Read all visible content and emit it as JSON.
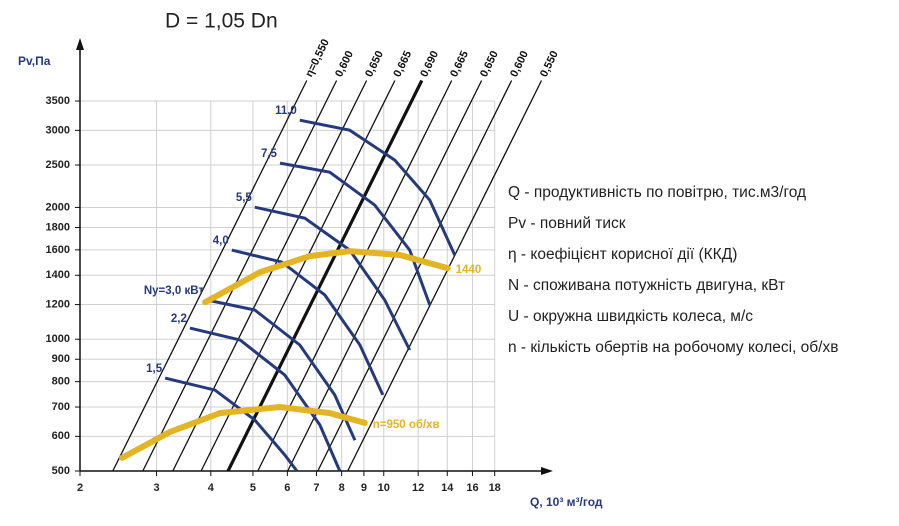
{
  "chart_data": {
    "type": "line",
    "title": "D = 1,05 Dn",
    "xlabel": "Q, 10³ м³/год",
    "ylabel": "Pv,Па",
    "xscale": "log",
    "yscale": "log",
    "xlim": [
      2,
      24
    ],
    "ylim": [
      500,
      4700
    ],
    "xticks": [
      2,
      3,
      4,
      5,
      6,
      7,
      8,
      9,
      10,
      12,
      14,
      16,
      18
    ],
    "yticks": [
      500,
      600,
      700,
      800,
      900,
      1000,
      1200,
      1400,
      1600,
      1800,
      2000,
      2500,
      3000,
      3500
    ],
    "grid": true,
    "efficiency_lines": [
      {
        "name": "η=0,550",
        "color": "#111111",
        "linewidth": 1.3,
        "x": [
          2.38,
          6.65
        ],
        "values": [
          500,
          3900
        ]
      },
      {
        "name": "0,600",
        "color": "#111111",
        "linewidth": 1.3,
        "x": [
          2.79,
          7.79
        ],
        "values": [
          500,
          3900
        ]
      },
      {
        "name": "0,650",
        "color": "#111111",
        "linewidth": 1.3,
        "x": [
          3.27,
          9.13
        ],
        "values": [
          500,
          3900
        ]
      },
      {
        "name": "0,665",
        "color": "#111111",
        "linewidth": 1.3,
        "x": [
          3.8,
          10.61
        ],
        "values": [
          500,
          3900
        ]
      },
      {
        "name": "0,690",
        "color": "#111111",
        "linewidth": 3.2,
        "x": [
          4.38,
          12.23
        ],
        "values": [
          500,
          3900
        ]
      },
      {
        "name": "0,665",
        "color": "#111111",
        "linewidth": 1.3,
        "x": [
          5.13,
          14.33
        ],
        "values": [
          500,
          3900
        ]
      },
      {
        "name": "0,650",
        "color": "#111111",
        "linewidth": 1.3,
        "x": [
          6.01,
          16.79
        ],
        "values": [
          500,
          3900
        ]
      },
      {
        "name": "0,600",
        "color": "#111111",
        "linewidth": 1.3,
        "x": [
          7.05,
          19.69
        ],
        "values": [
          500,
          3900
        ]
      },
      {
        "name": "0,550",
        "color": "#111111",
        "linewidth": 1.3,
        "x": [
          8.26,
          23.07
        ],
        "values": [
          500,
          3900
        ]
      }
    ],
    "power_curves": [
      {
        "name": "11,0",
        "color": "#253a7c",
        "x": [
          6.41,
          8.35,
          10.6,
          12.76,
          14.56
        ],
        "values": [
          3165,
          3002,
          2565,
          2078,
          1557
        ]
      },
      {
        "name": "7,5",
        "color": "#253a7c",
        "x": [
          5.77,
          7.51,
          9.53,
          11.47,
          12.76
        ],
        "values": [
          2525,
          2407,
          2025,
          1598,
          1197
        ]
      },
      {
        "name": "5,5",
        "color": "#253a7c",
        "x": [
          5.05,
          6.58,
          8.35,
          10.05,
          11.47
        ],
        "values": [
          2003,
          1891,
          1598,
          1229,
          945
        ]
      },
      {
        "name": "4,0",
        "color": "#253a7c",
        "x": [
          4.47,
          5.83,
          7.32,
          8.81,
          9.95
        ],
        "values": [
          1598,
          1500,
          1261,
          970,
          746
        ]
      },
      {
        "name": "Ny=3,0 кВт",
        "color": "#253a7c",
        "x": [
          3.92,
          5.05,
          6.41,
          7.71,
          8.58
        ],
        "values": [
          1229,
          1166,
          970,
          746,
          588
        ]
      },
      {
        "name": "2,2",
        "color": "#253a7c",
        "x": [
          3.58,
          4.67,
          5.92,
          7.13,
          7.92
        ],
        "values": [
          1060,
          996,
          828,
          637,
          500
        ]
      },
      {
        "name": "1,5",
        "color": "#253a7c",
        "x": [
          3.14,
          4.09,
          5.05,
          5.92,
          6.31
        ],
        "values": [
          815,
          765,
          654,
          544,
          500
        ]
      }
    ],
    "speed_curves": [
      {
        "name": "1440",
        "color": "#e3b423",
        "x": [
          3.88,
          5.19,
          6.76,
          8.35,
          10.88,
          14.03
        ],
        "values": [
          1215,
          1423,
          1548,
          1590,
          1557,
          1453
        ]
      },
      {
        "name": "n=950 об/хв",
        "color": "#e3b423",
        "x": [
          2.5,
          3.22,
          4.2,
          5.77,
          7.51,
          9.04
        ],
        "values": [
          536,
          614,
          678,
          700,
          678,
          644
        ]
      }
    ],
    "notes": [
      "Q - продуктивність по повітрю, тис.м3/год",
      "Pv - повний тиск",
      "η - коефіцієнт корисної дії (ККД)",
      "N - споживана потужність двигуна, кВт",
      "U - окружна швидкість колеса, м/с",
      "n - кількість обертів на робочому колесі, об/хв"
    ]
  }
}
